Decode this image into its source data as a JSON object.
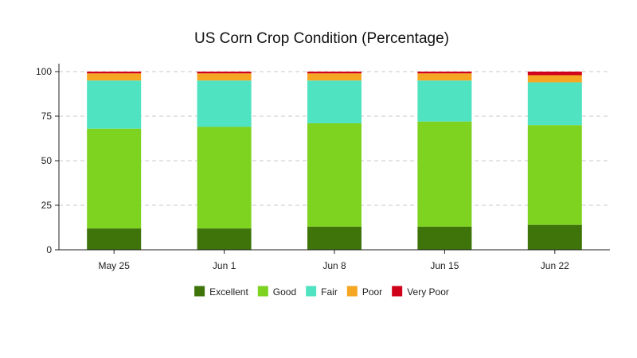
{
  "chart_data": {
    "type": "bar",
    "stacked": true,
    "title": "US Corn Crop Condition (Percentage)",
    "xlabel": "",
    "ylabel": "",
    "ylim": [
      0,
      100
    ],
    "yticks": [
      0,
      25,
      50,
      75,
      100
    ],
    "grid": true,
    "legend_position": "bottom",
    "categories": [
      "May 25",
      "Jun 1",
      "Jun 8",
      "Jun 15",
      "Jun 22"
    ],
    "series": [
      {
        "name": "Excellent",
        "color": "#3e7409",
        "values": [
          12,
          12,
          13,
          13,
          14
        ]
      },
      {
        "name": "Good",
        "color": "#7ed321",
        "values": [
          56,
          57,
          58,
          59,
          56
        ]
      },
      {
        "name": "Fair",
        "color": "#50e3c2",
        "values": [
          27,
          26,
          24,
          23,
          24
        ]
      },
      {
        "name": "Poor",
        "color": "#f5a623",
        "values": [
          4,
          4,
          4,
          4,
          4
        ]
      },
      {
        "name": "Very Poor",
        "color": "#d0021b",
        "values": [
          1,
          1,
          1,
          1,
          2
        ]
      }
    ]
  }
}
